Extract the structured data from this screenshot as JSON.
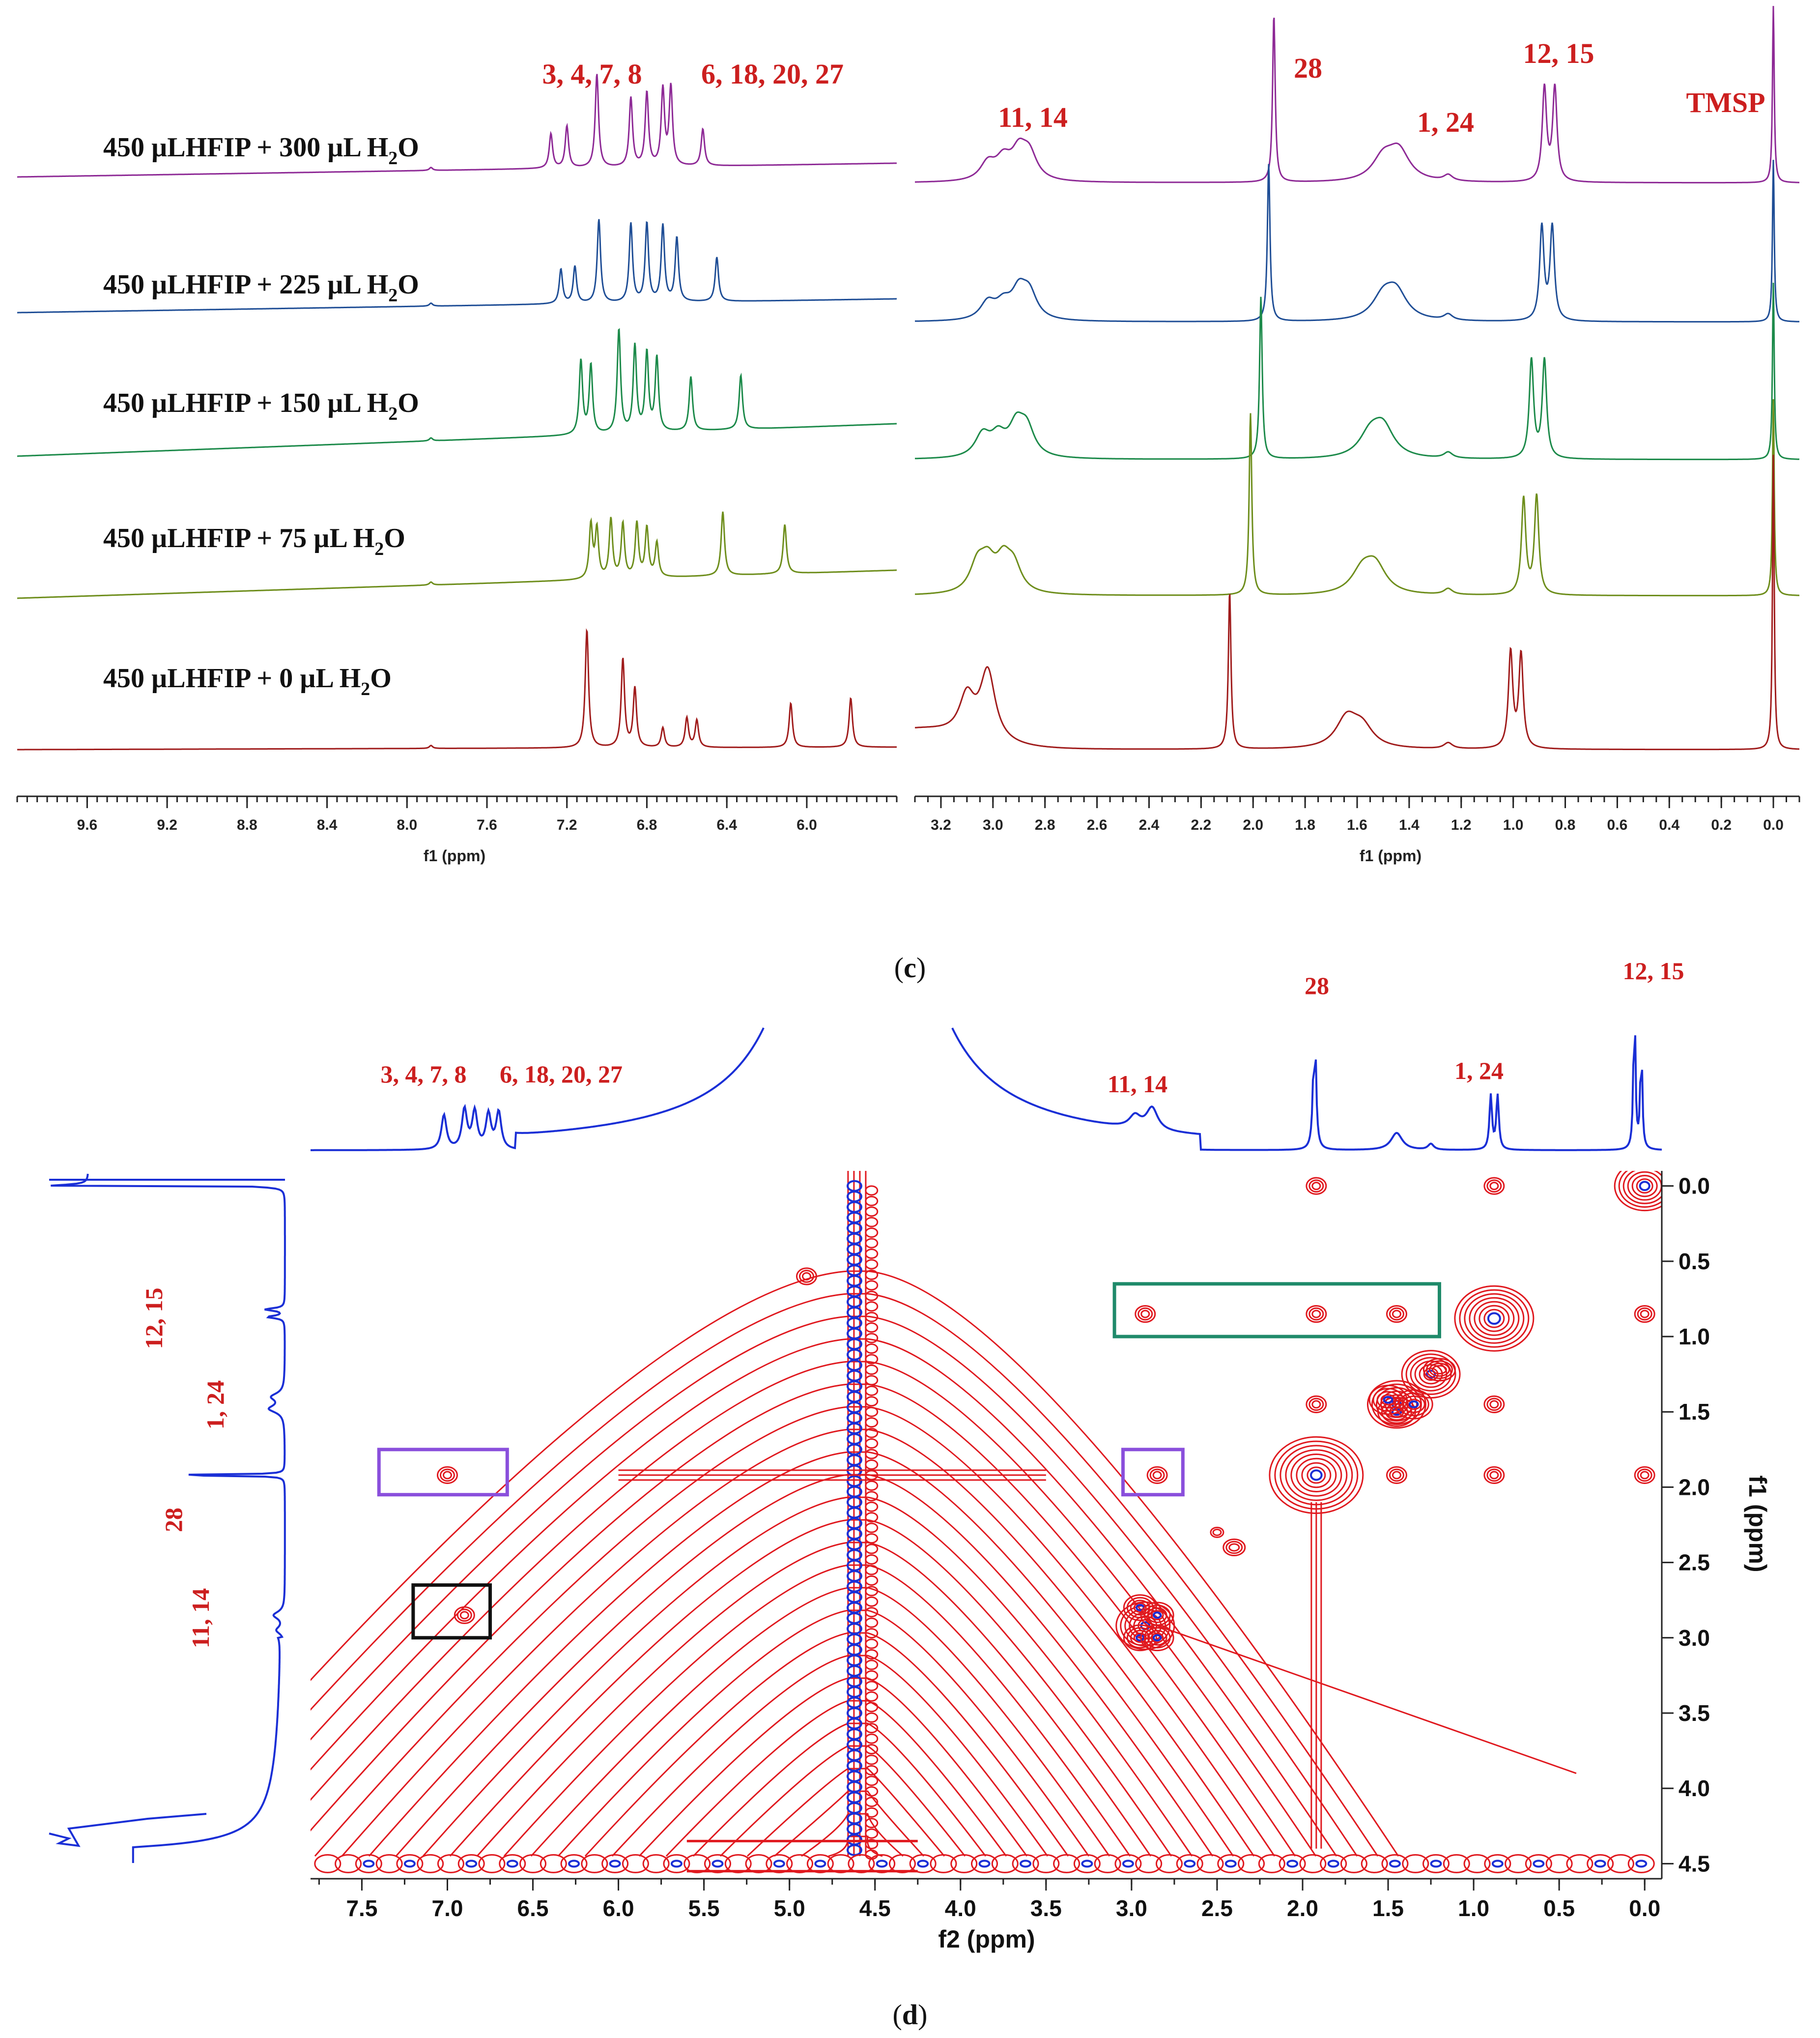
{
  "panel_c": {
    "caption_open": "(",
    "caption_letter": "c",
    "caption_close": ")",
    "conditions": [
      {
        "pre": "450 µLHFIP + 300 µL H",
        "sub": "2",
        "post": "O",
        "color": "#8e2a96"
      },
      {
        "pre": "450 µLHFIP + 225 µL H",
        "sub": "2",
        "post": "O",
        "color": "#1f4e96"
      },
      {
        "pre": "450 µLHFIP + 150 µL H",
        "sub": "2",
        "post": "O",
        "color": "#1c8a4a"
      },
      {
        "pre": "450 µLHFIP + 75 µL H",
        "sub": "2",
        "post": "O",
        "color": "#6e8e1c"
      },
      {
        "pre": "450 µLHFIP + 0 µL H",
        "sub": "2",
        "post": "O",
        "color": "#a01c1c"
      }
    ],
    "peak_labels": {
      "aromatic_a": "3, 4, 7, 8",
      "aromatic_b": "6, 18, 20, 27",
      "h11_14": "11, 14",
      "h28": "28",
      "h1_24": "1, 24",
      "h12_15": "12, 15",
      "tmsp": "TMSP"
    }
  },
  "panel_d": {
    "caption_open": "(",
    "caption_letter": "d",
    "caption_close": ")",
    "top_labels": {
      "aromatic_a": "3, 4, 7, 8",
      "aromatic_b": "6, 18, 20, 27",
      "h11_14": "11, 14",
      "h28": "28",
      "h1_24": "1, 24",
      "h12_15": "12, 15"
    },
    "side_labels": {
      "h12_15": "12, 15",
      "h1_24": "1, 24",
      "h28": "28",
      "h11_14": "11, 14"
    },
    "box_colors": {
      "green": "#1f8a6a",
      "purple": "#8a4fdc",
      "black": "#111111"
    },
    "contour_colors": {
      "positive": "#e0191f",
      "negative": "#1a2fd6"
    },
    "projection_color": "#1a2fd6"
  },
  "chart_data": [
    {
      "type": "line",
      "title": "",
      "panels": [
        "left",
        "right"
      ],
      "xlabel": "f1 (ppm)",
      "left_axis": {
        "xlim": [
          9.95,
          5.55
        ],
        "ticks": [
          "9.6",
          "9.2",
          "8.8",
          "8.4",
          "8.0",
          "7.6",
          "7.2",
          "6.8",
          "6.4",
          "6.0"
        ]
      },
      "right_axis": {
        "xlim": [
          3.3,
          -0.1
        ],
        "ticks": [
          "3.2",
          "3.0",
          "2.8",
          "2.6",
          "2.4",
          "2.2",
          "2.0",
          "1.8",
          "1.6",
          "1.4",
          "1.2",
          "1.0",
          "0.8",
          "0.6",
          "0.4",
          "0.2",
          "0.0"
        ]
      },
      "series": [
        {
          "name": "450 µLHFIP + 300 µL H2O",
          "peaks_ppm": {
            "aromatic": [
              7.28,
              7.2,
              7.05,
              6.88,
              6.8,
              6.72,
              6.68,
              6.52
            ],
            "h11_14": 2.92,
            "h28": 1.92,
            "h1_24": 1.45,
            "h12_15": [
              0.88,
              0.84
            ],
            "tmsp": 0.0
          }
        },
        {
          "name": "450 µLHFIP + 225 µL H2O",
          "peaks_ppm": {
            "aromatic": [
              7.23,
              7.16,
              7.04,
              6.88,
              6.8,
              6.72,
              6.65,
              6.45
            ],
            "h11_14": 2.92,
            "h28": 1.94,
            "h1_24": 1.47,
            "h12_15": [
              0.89,
              0.85
            ],
            "tmsp": 0.0
          }
        },
        {
          "name": "450 µLHFIP + 150 µL H2O",
          "peaks_ppm": {
            "aromatic": [
              7.13,
              7.08,
              6.94,
              6.86,
              6.8,
              6.75,
              6.58,
              6.33
            ],
            "h11_14": 2.95,
            "h28": 1.97,
            "h1_24": 1.51,
            "h12_15": [
              0.93,
              0.88
            ],
            "tmsp": 0.0
          }
        },
        {
          "name": "450 µLHFIP + 75 µL H2O",
          "peaks_ppm": {
            "aromatic": [
              7.08,
              7.05,
              6.98,
              6.92,
              6.85,
              6.8,
              6.75,
              6.42,
              6.11
            ],
            "h11_14": 2.98,
            "h28": 2.01,
            "h1_24": 1.55,
            "h12_15": [
              0.96,
              0.91
            ],
            "tmsp": 0.0
          }
        },
        {
          "name": "450 µLHFIP + 0 µL H2O",
          "peaks_ppm": {
            "aromatic": [
              7.1,
              6.92,
              6.86,
              6.72,
              6.6,
              6.55,
              6.08,
              5.78
            ],
            "h11_14": 3.02,
            "h28": 2.09,
            "h1_24": 1.64,
            "h12_15": [
              1.01,
              0.97
            ],
            "tmsp": 0.0
          }
        }
      ]
    },
    {
      "type": "heatmap",
      "title": "",
      "xlabel": "f2 (ppm)",
      "ylabel": "f1 (ppm)",
      "xlim": [
        7.8,
        -0.1
      ],
      "ylim": [
        -0.1,
        4.6
      ],
      "xticks": [
        "7.5",
        "7.0",
        "6.5",
        "6.0",
        "5.5",
        "5.0",
        "4.5",
        "4.0",
        "3.5",
        "3.0",
        "2.5",
        "2.0",
        "1.5",
        "1.0",
        "0.5",
        "0.0"
      ],
      "yticks": [
        "0.0",
        "0.5",
        "1.0",
        "1.5",
        "2.0",
        "2.5",
        "3.0",
        "3.5",
        "4.0",
        "4.5"
      ],
      "boxes": [
        {
          "color": "green",
          "x_range": [
            3.1,
            1.2
          ],
          "y_range": [
            0.65,
            1.0
          ]
        },
        {
          "color": "purple",
          "x_range": [
            7.4,
            6.65
          ],
          "y_range": [
            1.75,
            2.05
          ]
        },
        {
          "color": "purple",
          "x_range": [
            3.05,
            2.7
          ],
          "y_range": [
            1.75,
            2.05
          ]
        },
        {
          "color": "black",
          "x_range": [
            7.2,
            6.75
          ],
          "y_range": [
            2.65,
            3.0
          ]
        }
      ],
      "cross_peaks": [
        {
          "f2": 1.92,
          "f1": 1.92,
          "type": "diagonal"
        },
        {
          "f2": 0.88,
          "f1": 0.88,
          "type": "diagonal"
        },
        {
          "f2": 1.45,
          "f1": 1.45,
          "type": "diagonal"
        },
        {
          "f2": 1.25,
          "f1": 1.25,
          "type": "diagonal"
        },
        {
          "f2": 2.92,
          "f1": 2.92,
          "type": "diagonal"
        },
        {
          "f2": 0.0,
          "f1": 0.0,
          "type": "diagonal"
        },
        {
          "f2": 4.9,
          "f1": 0.6,
          "type": "cross"
        },
        {
          "f2": 2.92,
          "f1": 0.85,
          "type": "cross"
        },
        {
          "f2": 1.92,
          "f1": 0.85,
          "type": "cross"
        },
        {
          "f2": 1.45,
          "f1": 0.85,
          "type": "cross"
        },
        {
          "f2": 1.92,
          "f1": 1.45,
          "type": "cross"
        },
        {
          "f2": 0.88,
          "f1": 1.45,
          "type": "cross"
        },
        {
          "f2": 0.88,
          "f1": 1.92,
          "type": "cross"
        },
        {
          "f2": 1.45,
          "f1": 1.92,
          "type": "cross"
        },
        {
          "f2": 2.85,
          "f1": 1.92,
          "type": "cross"
        },
        {
          "f2": 7.0,
          "f1": 1.92,
          "type": "cross"
        },
        {
          "f2": 6.9,
          "f1": 2.85,
          "type": "cross"
        },
        {
          "f2": 0.88,
          "f1": 0.0,
          "type": "cross"
        },
        {
          "f2": 1.92,
          "f1": 0.0,
          "type": "cross"
        },
        {
          "f2": 0.0,
          "f1": 0.85,
          "type": "cross"
        },
        {
          "f2": 0.0,
          "f1": 1.92,
          "type": "cross"
        }
      ],
      "water_ridge_f2": 4.6
    }
  ]
}
